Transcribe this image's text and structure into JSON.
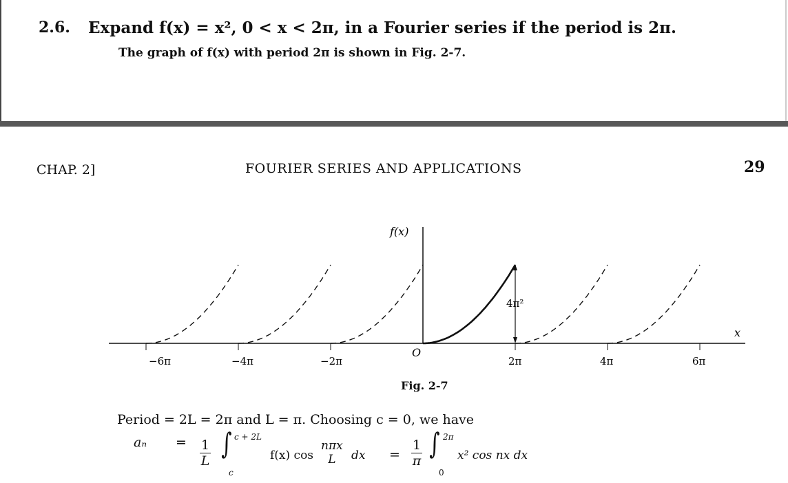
{
  "problem": {
    "number": "2.6.",
    "statement": "Expand f(x) = x², 0 < x < 2π, in a Fourier series if the period is 2π.",
    "note": "The graph of f(x) with period 2π is shown in Fig. 2-7."
  },
  "page_header": {
    "chapter": "CHAP. 2]",
    "title": "FOURIER SERIES AND APPLICATIONS",
    "page_number": "29"
  },
  "figure": {
    "caption": "Fig. 2-7",
    "y_axis_label": "f(x)",
    "x_axis_label": "x",
    "origin_label": "O",
    "height_label": "4π²",
    "tick_labels": [
      "−6π",
      "−4π",
      "−2π",
      "2π",
      "4π",
      "6π"
    ]
  },
  "solution": {
    "period_line": "Period = 2L = 2π  and  L = π.    Choosing  c = 0,  we have",
    "lhs": "aₙ",
    "eq1": "=",
    "frac1_num": "1",
    "frac1_den": "L",
    "int1_upper": "c + 2L",
    "int1_lower": "c",
    "integrand1a": "f(x) cos",
    "inner_num": "nπx",
    "inner_den": "L",
    "dx1": "dx",
    "eq2": "=",
    "frac2_num": "1",
    "frac2_den": "π",
    "int2_upper": "2π",
    "int2_lower": "0",
    "integrand2": "x² cos nx dx"
  }
}
